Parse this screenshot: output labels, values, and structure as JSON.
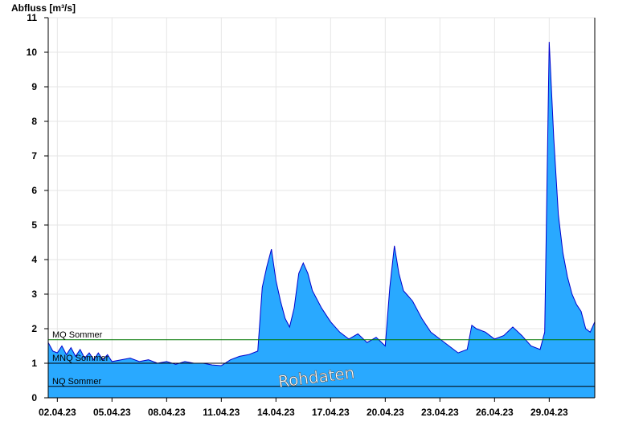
{
  "chart_data": {
    "type": "area",
    "ylabel": "Abfluss [m³/s]",
    "ylim": [
      0,
      11
    ],
    "yticks": [
      0,
      1,
      2,
      3,
      4,
      5,
      6,
      7,
      8,
      9,
      10,
      11
    ],
    "xlim": [
      "2023-04-01T12:00",
      "2023-05-01T12:00"
    ],
    "xtick_labels": [
      "02.04.23",
      "05.04.23",
      "08.04.23",
      "11.04.23",
      "14.04.23",
      "17.04.23",
      "20.04.23",
      "23.04.23",
      "26.04.23",
      "29.04.23"
    ],
    "grid": true,
    "watermark": "Rohdaten",
    "colors": {
      "fill": "#29a9ff",
      "line": "#0000cc",
      "mq": "#007700",
      "mnq": "#000000",
      "nq": "#000000"
    },
    "reference_lines": [
      {
        "label": "MQ Sommer",
        "value": 1.68
      },
      {
        "label": "MNQ Sommer",
        "value": 1.0
      },
      {
        "label": "NQ Sommer",
        "value": 0.33
      }
    ],
    "series": [
      {
        "points": [
          [
            "2023-04-01T12:00",
            1.6
          ],
          [
            "2023-04-01T18:00",
            1.35
          ],
          [
            "2023-04-02T00:00",
            1.3
          ],
          [
            "2023-04-02T06:00",
            1.5
          ],
          [
            "2023-04-02T12:00",
            1.25
          ],
          [
            "2023-04-02T18:00",
            1.45
          ],
          [
            "2023-04-03T00:00",
            1.2
          ],
          [
            "2023-04-03T06:00",
            1.4
          ],
          [
            "2023-04-03T12:00",
            1.15
          ],
          [
            "2023-04-03T18:00",
            1.3
          ],
          [
            "2023-04-04T00:00",
            1.1
          ],
          [
            "2023-04-04T06:00",
            1.3
          ],
          [
            "2023-04-04T12:00",
            1.1
          ],
          [
            "2023-04-04T18:00",
            1.25
          ],
          [
            "2023-04-05T00:00",
            1.05
          ],
          [
            "2023-04-05T12:00",
            1.1
          ],
          [
            "2023-04-06T00:00",
            1.15
          ],
          [
            "2023-04-06T12:00",
            1.05
          ],
          [
            "2023-04-07T00:00",
            1.1
          ],
          [
            "2023-04-07T12:00",
            1.0
          ],
          [
            "2023-04-08T00:00",
            1.05
          ],
          [
            "2023-04-08T12:00",
            0.97
          ],
          [
            "2023-04-09T00:00",
            1.05
          ],
          [
            "2023-04-09T12:00",
            1.0
          ],
          [
            "2023-04-10T00:00",
            1.0
          ],
          [
            "2023-04-10T12:00",
            0.95
          ],
          [
            "2023-04-11T00:00",
            0.93
          ],
          [
            "2023-04-11T12:00",
            1.1
          ],
          [
            "2023-04-12T00:00",
            1.2
          ],
          [
            "2023-04-12T12:00",
            1.25
          ],
          [
            "2023-04-13T00:00",
            1.35
          ],
          [
            "2023-04-13T06:00",
            3.2
          ],
          [
            "2023-04-13T12:00",
            3.8
          ],
          [
            "2023-04-13T18:00",
            4.3
          ],
          [
            "2023-04-14T00:00",
            3.4
          ],
          [
            "2023-04-14T06:00",
            2.8
          ],
          [
            "2023-04-14T12:00",
            2.3
          ],
          [
            "2023-04-14T18:00",
            2.05
          ],
          [
            "2023-04-15T00:00",
            2.6
          ],
          [
            "2023-04-15T06:00",
            3.6
          ],
          [
            "2023-04-15T12:00",
            3.9
          ],
          [
            "2023-04-15T18:00",
            3.6
          ],
          [
            "2023-04-16T00:00",
            3.1
          ],
          [
            "2023-04-16T12:00",
            2.6
          ],
          [
            "2023-04-17T00:00",
            2.2
          ],
          [
            "2023-04-17T12:00",
            1.9
          ],
          [
            "2023-04-18T00:00",
            1.7
          ],
          [
            "2023-04-18T12:00",
            1.85
          ],
          [
            "2023-04-19T00:00",
            1.6
          ],
          [
            "2023-04-19T12:00",
            1.75
          ],
          [
            "2023-04-20T00:00",
            1.5
          ],
          [
            "2023-04-20T06:00",
            3.2
          ],
          [
            "2023-04-20T12:00",
            4.4
          ],
          [
            "2023-04-20T18:00",
            3.6
          ],
          [
            "2023-04-21T00:00",
            3.1
          ],
          [
            "2023-04-21T12:00",
            2.8
          ],
          [
            "2023-04-22T00:00",
            2.3
          ],
          [
            "2023-04-22T12:00",
            1.9
          ],
          [
            "2023-04-23T00:00",
            1.7
          ],
          [
            "2023-04-23T12:00",
            1.5
          ],
          [
            "2023-04-24T00:00",
            1.3
          ],
          [
            "2023-04-24T12:00",
            1.4
          ],
          [
            "2023-04-24T18:00",
            2.1
          ],
          [
            "2023-04-25T00:00",
            2.0
          ],
          [
            "2023-04-25T12:00",
            1.9
          ],
          [
            "2023-04-26T00:00",
            1.7
          ],
          [
            "2023-04-26T12:00",
            1.8
          ],
          [
            "2023-04-27T00:00",
            2.05
          ],
          [
            "2023-04-27T12:00",
            1.8
          ],
          [
            "2023-04-28T00:00",
            1.5
          ],
          [
            "2023-04-28T12:00",
            1.4
          ],
          [
            "2023-04-28T18:00",
            1.9
          ],
          [
            "2023-04-29T00:00",
            10.3
          ],
          [
            "2023-04-29T06:00",
            7.5
          ],
          [
            "2023-04-29T12:00",
            5.3
          ],
          [
            "2023-04-29T18:00",
            4.2
          ],
          [
            "2023-04-30T00:00",
            3.5
          ],
          [
            "2023-04-30T06:00",
            3.0
          ],
          [
            "2023-04-30T12:00",
            2.7
          ],
          [
            "2023-04-30T18:00",
            2.5
          ],
          [
            "2023-05-01T00:00",
            2.0
          ],
          [
            "2023-05-01T06:00",
            1.9
          ],
          [
            "2023-05-01T12:00",
            2.2
          ]
        ]
      }
    ]
  }
}
